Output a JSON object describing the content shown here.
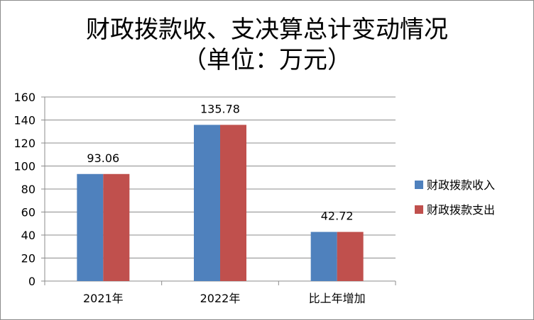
{
  "chart_data": {
    "type": "bar",
    "title_line1": "财政拨款收、支决算总计变动情况",
    "title_line2": "（单位：万元）",
    "categories": [
      "2021年",
      "2022年",
      "比上年增加"
    ],
    "series": [
      {
        "name": "财政拨款收入",
        "values": [
          93.06,
          135.78,
          42.72
        ],
        "color": "#4f81bd"
      },
      {
        "name": "财政拨款支出",
        "values": [
          93.06,
          135.78,
          42.72
        ],
        "color": "#c0504d"
      }
    ],
    "data_labels": [
      "93.06",
      "135.78",
      "42.72"
    ],
    "y_ticks": [
      "0",
      "20",
      "40",
      "60",
      "80",
      "100",
      "120",
      "140",
      "160"
    ],
    "ylim": [
      0,
      160
    ],
    "grid": true,
    "legend_position": "right"
  }
}
